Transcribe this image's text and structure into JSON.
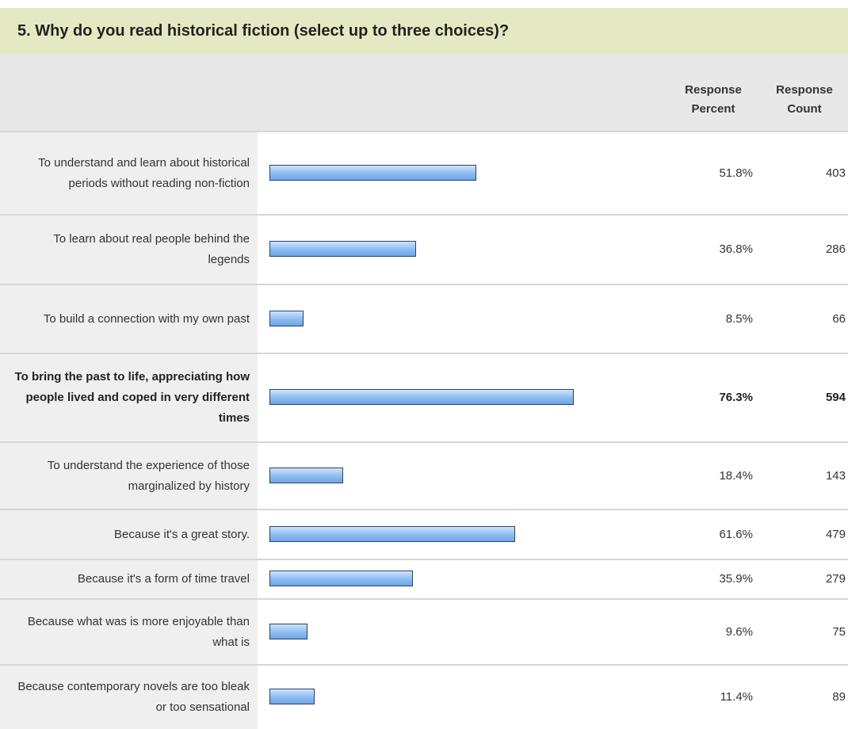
{
  "question": "5. Why do you read historical fiction (select up to three choices)?",
  "table": {
    "headers": {
      "percent": "Response Percent",
      "count": "Response Count"
    },
    "rows": [
      {
        "label": "To understand and learn about historical periods without reading non-fiction",
        "percent": 51.8,
        "percent_label": "51.8%",
        "count": 403,
        "highlight": false
      },
      {
        "label": "To learn about real people behind the legends",
        "percent": 36.8,
        "percent_label": "36.8%",
        "count": 286,
        "highlight": false
      },
      {
        "label": "To build a connection with my own past",
        "percent": 8.5,
        "percent_label": "8.5%",
        "count": 66,
        "highlight": false
      },
      {
        "label": "To bring the past to life, appreciating how people lived and coped in very different times",
        "percent": 76.3,
        "percent_label": "76.3%",
        "count": 594,
        "highlight": true
      },
      {
        "label": "To understand the experience of those marginalized by history",
        "percent": 18.4,
        "percent_label": "18.4%",
        "count": 143,
        "highlight": false
      },
      {
        "label": "Because it's a great story.",
        "percent": 61.6,
        "percent_label": "61.6%",
        "count": 479,
        "highlight": false
      },
      {
        "label": "Because it's a form of time travel",
        "percent": 35.9,
        "percent_label": "35.9%",
        "count": 279,
        "highlight": false
      },
      {
        "label": "Because what was is more enjoyable than what is",
        "percent": 9.6,
        "percent_label": "9.6%",
        "count": 75,
        "highlight": false
      },
      {
        "label": "Because contemporary novels are too bleak or too sensational",
        "percent": 11.4,
        "percent_label": "11.4%",
        "count": 89,
        "highlight": false
      }
    ]
  }
}
